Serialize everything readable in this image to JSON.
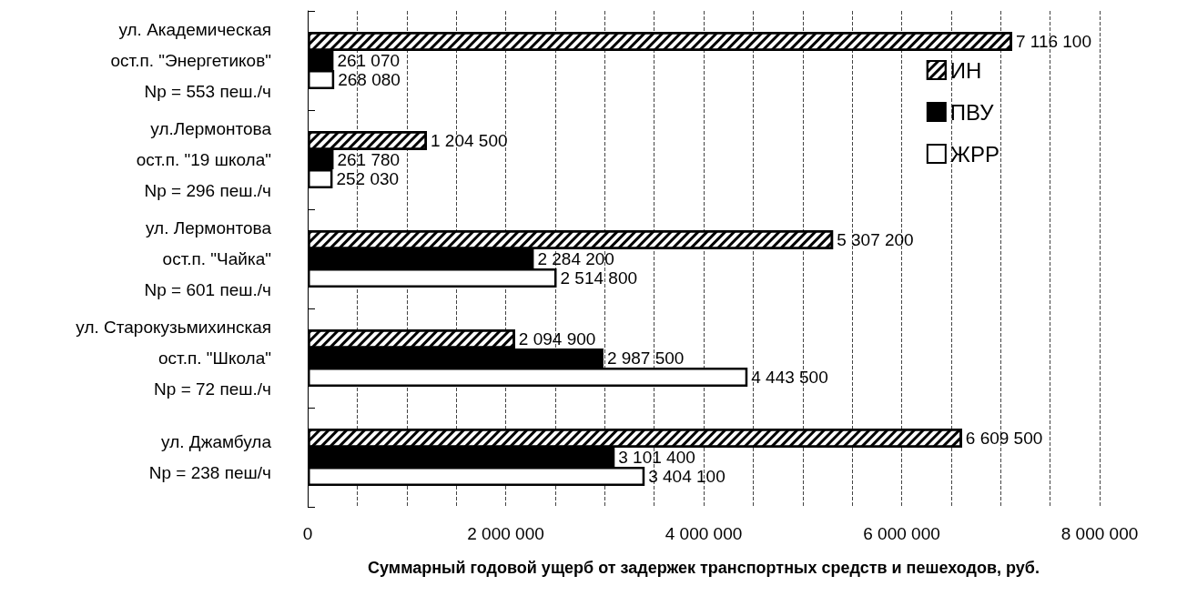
{
  "chart_data": {
    "type": "bar",
    "orientation": "horizontal",
    "categories": [
      "ул. Академическая\nост.п. \"Энергетиков\"\nNр = 553 пеш./ч",
      "ул.Лермонтова\nост.п. \"19 школа\"\nNр = 296 пеш./ч",
      "ул. Лермонтова\nост.п. \"Чайка\"\nNр = 601 пеш./ч",
      "ул. Старокузьмихинская\nост.п. \"Школа\"\nNр = 72 пеш./ч",
      "ул. Джамбула\nNр = 238 пеш/ч"
    ],
    "series": [
      {
        "name": "ИН",
        "color": "#ffffff",
        "values": [
          7116100,
          1204500,
          5307200,
          2094900,
          6609500
        ]
      },
      {
        "name": "ПВУ",
        "color": "#000000",
        "values": [
          261070,
          261780,
          2284200,
          2987500,
          3101400
        ]
      },
      {
        "name": "ЖРР",
        "color": "#ffffff",
        "values": [
          268080,
          252030,
          2514800,
          4443500,
          3404100
        ]
      }
    ],
    "xlabel": "Суммарный годовой ущерб от задержек транспортных средств и пешеходов, руб.",
    "xlim": [
      0,
      8000000
    ],
    "xticks": [
      {
        "value": 0,
        "label": "0"
      },
      {
        "value": 500000,
        "label": null
      },
      {
        "value": 1000000,
        "label": null
      },
      {
        "value": 1500000,
        "label": null
      },
      {
        "value": 2000000,
        "label": "2 000 000"
      },
      {
        "value": 2500000,
        "label": null
      },
      {
        "value": 3000000,
        "label": null
      },
      {
        "value": 3500000,
        "label": null
      },
      {
        "value": 4000000,
        "label": "4 000 000"
      },
      {
        "value": 4500000,
        "label": null
      },
      {
        "value": 5000000,
        "label": null
      },
      {
        "value": 5500000,
        "label": null
      },
      {
        "value": 6000000,
        "label": "6 000 000"
      },
      {
        "value": 6500000,
        "label": null
      },
      {
        "value": 7000000,
        "label": null
      },
      {
        "value": 7500000,
        "label": null
      },
      {
        "value": 8000000,
        "label": "8 000 000"
      }
    ],
    "grid": "x",
    "legend": "top right",
    "data_labels": true
  }
}
